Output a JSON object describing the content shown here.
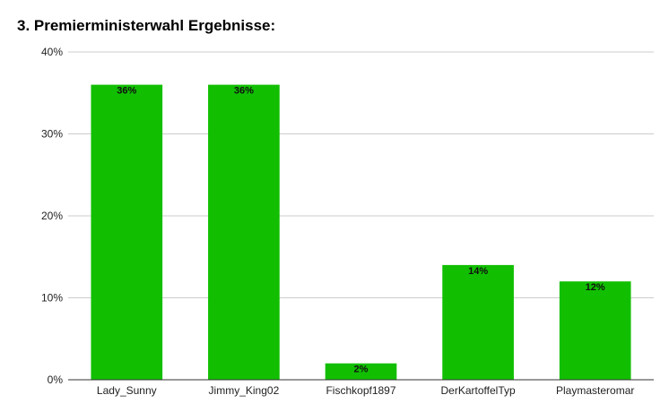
{
  "chart_data": {
    "type": "bar",
    "title": "3. Premierministerwahl Ergebnisse:",
    "categories": [
      "Lady_Sunny",
      "Jimmy_King02",
      "Fischkopf1897",
      "DerKartoffelTyp",
      "Playmasteromar"
    ],
    "values": [
      36,
      36,
      2,
      14,
      12
    ],
    "data_labels": [
      "36%",
      "36%",
      "2%",
      "14%",
      "12%"
    ],
    "ylim": [
      0,
      40
    ],
    "yticks": [
      0,
      10,
      20,
      30,
      40
    ],
    "ytick_labels": [
      "0%",
      "10%",
      "20%",
      "30%",
      "40%"
    ],
    "grid": true,
    "legend": "none",
    "bar_color": "#11bf00"
  }
}
